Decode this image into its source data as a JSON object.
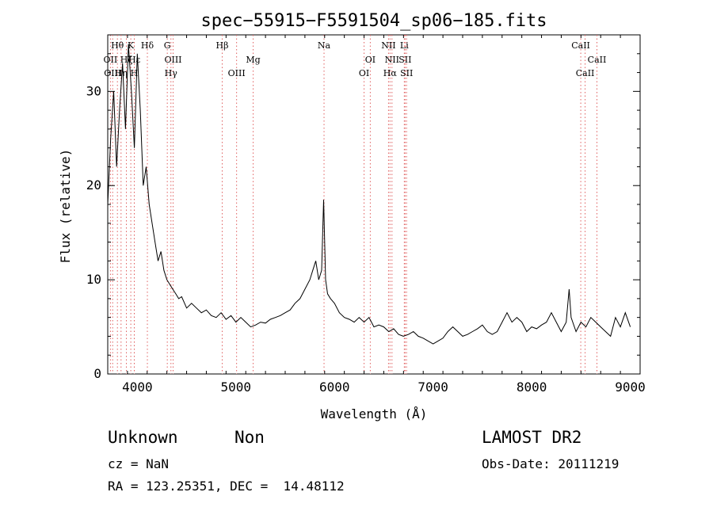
{
  "chart_data": {
    "type": "line",
    "title": "spec−55915−F5591504_sp06−185.fits",
    "xlabel": "Wavelength (Å)",
    "ylabel": "Flux (relative)",
    "xlim": [
      3700,
      9100
    ],
    "ylim": [
      0,
      36
    ],
    "x_ticks": [
      4000,
      5000,
      6000,
      7000,
      8000,
      9000
    ],
    "y_ticks": [
      0,
      10,
      20,
      30
    ],
    "grid": false,
    "legend": "none",
    "line_color": "#000000",
    "marker_color": "#e06060",
    "series": [
      {
        "x": [
          3700,
          3730,
          3760,
          3790,
          3820,
          3850,
          3880,
          3910,
          3940,
          3970,
          4000,
          4030,
          4060,
          4090,
          4120,
          4150,
          4180,
          4210,
          4240,
          4270,
          4300,
          4330,
          4360,
          4390,
          4420,
          4450,
          4500,
          4550,
          4600,
          4650,
          4700,
          4750,
          4800,
          4850,
          4900,
          4950,
          5000,
          5050,
          5100,
          5150,
          5200,
          5250,
          5300,
          5350,
          5400,
          5450,
          5500,
          5550,
          5600,
          5650,
          5700,
          5750,
          5780,
          5810,
          5840,
          5870,
          5890,
          5910,
          5930,
          5960,
          6000,
          6050,
          6100,
          6150,
          6200,
          6250,
          6300,
          6350,
          6400,
          6450,
          6500,
          6550,
          6600,
          6650,
          6700,
          6750,
          6800,
          6850,
          6900,
          6950,
          7000,
          7050,
          7100,
          7150,
          7200,
          7250,
          7300,
          7350,
          7400,
          7450,
          7500,
          7550,
          7600,
          7650,
          7700,
          7750,
          7800,
          7850,
          7900,
          7950,
          8000,
          8050,
          8100,
          8150,
          8200,
          8250,
          8300,
          8350,
          8380,
          8400,
          8450,
          8500,
          8550,
          8600,
          8650,
          8700,
          8750,
          8800,
          8850,
          8900,
          8950,
          9000
        ],
        "y": [
          18,
          25,
          30,
          22,
          28,
          33,
          26,
          35,
          30,
          24,
          34,
          28,
          20,
          22,
          18,
          16,
          14,
          12,
          13,
          11,
          10,
          9.5,
          9,
          8.5,
          8,
          8.2,
          7,
          7.5,
          7,
          6.5,
          6.8,
          6.2,
          6,
          6.5,
          5.8,
          6.2,
          5.5,
          6,
          5.5,
          5,
          5.2,
          5.5,
          5.4,
          5.8,
          6,
          6.2,
          6.5,
          6.8,
          7.5,
          8,
          9,
          10,
          11,
          12,
          10,
          11,
          18.5,
          10,
          8.5,
          8,
          7.5,
          6.5,
          6,
          5.8,
          5.5,
          6,
          5.5,
          6,
          5,
          5.2,
          5,
          4.5,
          4.8,
          4.2,
          4,
          4.2,
          4.5,
          4,
          3.8,
          3.5,
          3.2,
          3.5,
          3.8,
          4.5,
          5,
          4.5,
          4,
          4.2,
          4.5,
          4.8,
          5.2,
          4.5,
          4.2,
          4.5,
          5.5,
          6.5,
          5.5,
          6,
          5.5,
          4.5,
          5,
          4.8,
          5.2,
          5.5,
          6.5,
          5.5,
          4.5,
          5.5,
          9,
          6,
          4.5,
          5.5,
          5,
          6,
          5.5,
          5,
          4.5,
          4,
          6,
          5,
          6.5,
          5
        ]
      }
    ],
    "line_markers": [
      {
        "wl": 3727,
        "label": "OII",
        "row": 1
      },
      {
        "wl": 3750,
        "label": "OIII",
        "row": 2
      },
      {
        "wl": 3798,
        "label": "Hθ",
        "row": 0
      },
      {
        "wl": 3835,
        "label": "Hη",
        "row": 2
      },
      {
        "wl": 3889,
        "label": "Hζ",
        "row": 1
      },
      {
        "wl": 3934,
        "label": "K",
        "row": 0
      },
      {
        "wl": 3969,
        "label": "H",
        "row": 2
      },
      {
        "wl": 3970,
        "label": "Hε",
        "row": 1
      },
      {
        "wl": 4102,
        "label": "Hδ",
        "row": 0
      },
      {
        "wl": 4304,
        "label": "G",
        "row": 0
      },
      {
        "wl": 4341,
        "label": "Hγ",
        "row": 2
      },
      {
        "wl": 4363,
        "label": "OIII",
        "row": 1
      },
      {
        "wl": 4861,
        "label": "Hβ",
        "row": 0
      },
      {
        "wl": 5007,
        "label": "OIII",
        "row": 2
      },
      {
        "wl": 5175,
        "label": "Mg",
        "row": 1
      },
      {
        "wl": 5894,
        "label": "Na",
        "row": 0
      },
      {
        "wl": 6300,
        "label": "OI",
        "row": 2
      },
      {
        "wl": 6363,
        "label": "OI",
        "row": 1
      },
      {
        "wl": 6548,
        "label": "NII",
        "row": 0
      },
      {
        "wl": 6563,
        "label": "Hα",
        "row": 2
      },
      {
        "wl": 6583,
        "label": "NII",
        "row": 1
      },
      {
        "wl": 6708,
        "label": "Li",
        "row": 0
      },
      {
        "wl": 6716,
        "label": "SII",
        "row": 1
      },
      {
        "wl": 6731,
        "label": "SII",
        "row": 2
      },
      {
        "wl": 8498,
        "label": "CaII",
        "row": 0
      },
      {
        "wl": 8542,
        "label": "CaII",
        "row": 2
      },
      {
        "wl": 8662,
        "label": "CaII",
        "row": 1
      }
    ]
  },
  "info": {
    "class": "Unknown",
    "subclass": "Non",
    "survey": "LAMOST DR2",
    "cz": "cz = NaN",
    "obs_date": "Obs-Date: 20111219",
    "radec": "RA = 123.25351, DEC =  14.48112"
  }
}
